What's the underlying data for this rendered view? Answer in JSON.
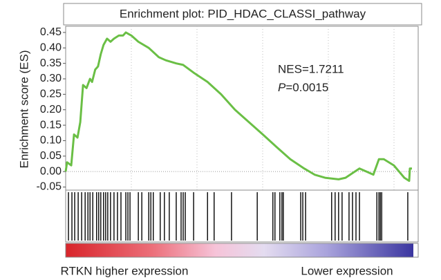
{
  "chart_data": {
    "type": "line",
    "title": "Enrichment plot: PID_HDAC_CLASSI_pathway",
    "y_label": "Enrichment score (ES)",
    "annotations": {
      "nes": "NES=1.7211",
      "p_symbol": "P",
      "p_value": "=0.0015"
    },
    "left_label": "RTKN higher expression",
    "right_label": "Lower expression",
    "xlim": [
      0,
      100
    ],
    "ylim": [
      -0.06,
      0.47
    ],
    "yticks": [
      0.45,
      {
        "value": 0.4,
        "label": "0.40"
      },
      0.35,
      {
        "value": 0.3,
        "label": "0.30"
      },
      0.25,
      {
        "value": 0.2,
        "label": "0.20"
      },
      0.15,
      {
        "value": 0.1,
        "label": "0.10"
      },
      0.05,
      {
        "value": 0,
        "label": "0.00"
      },
      -0.05
    ],
    "zero_line": true,
    "color": "#6abf45",
    "x": [
      0,
      0.4,
      1.6,
      2.4,
      3.4,
      4.2,
      5.0,
      6.0,
      7.0,
      7.6,
      8.5,
      9.3,
      10.1,
      10.9,
      11.9,
      12.9,
      13.9,
      15.3,
      16.5,
      17.3,
      18.9,
      20.9,
      23.9,
      26.8,
      28.8,
      31.8,
      33.8,
      36.8,
      40.8,
      44.7,
      48.7,
      52.7,
      56.7,
      60.6,
      64.6,
      68.6,
      71.6,
      74.6,
      78.5,
      80.5,
      84.5,
      86.5,
      88.5,
      90.1,
      91.5,
      94.4,
      97.4,
      98.8,
      99.0,
      99.6
    ],
    "values": [
      0,
      0.03,
      0.02,
      0.12,
      0.11,
      0.16,
      0.28,
      0.27,
      0.3,
      0.29,
      0.33,
      0.34,
      0.38,
      0.41,
      0.43,
      0.42,
      0.43,
      0.44,
      0.44,
      0.45,
      0.44,
      0.42,
      0.4,
      0.37,
      0.36,
      0.35,
      0.345,
      0.32,
      0.29,
      0.25,
      0.2,
      0.16,
      0.12,
      0.08,
      0.04,
      0.01,
      -0.01,
      -0.02,
      -0.025,
      -0.02,
      0.01,
      0,
      -0.01,
      0.04,
      0.04,
      0.02,
      -0.02,
      -0.03,
      0.01,
      0.01
    ],
    "hits": [
      0.8,
      1.8,
      2.6,
      3.6,
      4.6,
      5.6,
      6.4,
      7.0,
      7.8,
      8.9,
      9.5,
      10.1,
      10.9,
      11.5,
      12.1,
      12.9,
      13.9,
      14.9,
      15.9,
      17.3,
      17.9,
      18.5,
      20.9,
      21.9,
      23.9,
      24.5,
      25.2,
      27.2,
      28.4,
      29.8,
      31.8,
      33.2,
      33.8,
      34.4,
      36.8,
      40.8,
      42.7,
      47.7,
      55.1,
      59.6,
      60.2,
      61.6,
      62.2,
      62.6,
      67.6,
      68.2,
      69.0,
      76.5,
      77.5,
      78.5,
      79.5,
      81.5,
      82.5,
      83.5,
      84.5,
      89.5,
      90.1,
      90.5,
      90.9,
      98.4
    ]
  }
}
